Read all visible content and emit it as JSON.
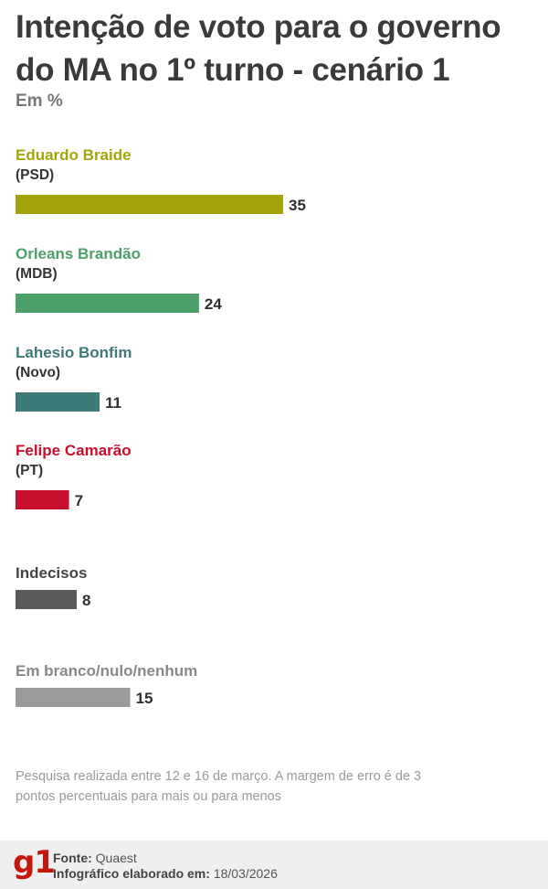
{
  "title": "Intenção de voto para o governo do MA no 1º turno - cenário 1",
  "subtitle": "Em %",
  "chart_data": {
    "type": "bar",
    "orientation": "horizontal",
    "categories": [
      "Eduardo Braide",
      "Orleans Brandão",
      "Lahesio Bonfim",
      "Felipe Camarão",
      "Indecisos",
      "Em branco/nulo/nenhum"
    ],
    "parties": [
      "(PSD)",
      "(MDB)",
      "(Novo)",
      "(PT)",
      "",
      ""
    ],
    "values": [
      35,
      24,
      11,
      7,
      8,
      15
    ],
    "colors": [
      "#a4a40a",
      "#4ea06a",
      "#3d7a78",
      "#c8102e",
      "#5a5a5a",
      "#9a9a9a"
    ],
    "xlim": [
      0,
      35
    ]
  },
  "note": "Pesquisa realizada entre 12 e 16 de março. A margem de erro é de 3 pontos percentuais para mais ou para menos",
  "footer": {
    "logo": "g1",
    "source_label": "Fonte:",
    "source_value": "Quaest",
    "date_label": "Infográfico elaborado em:",
    "date_value": "18/03/2026"
  }
}
